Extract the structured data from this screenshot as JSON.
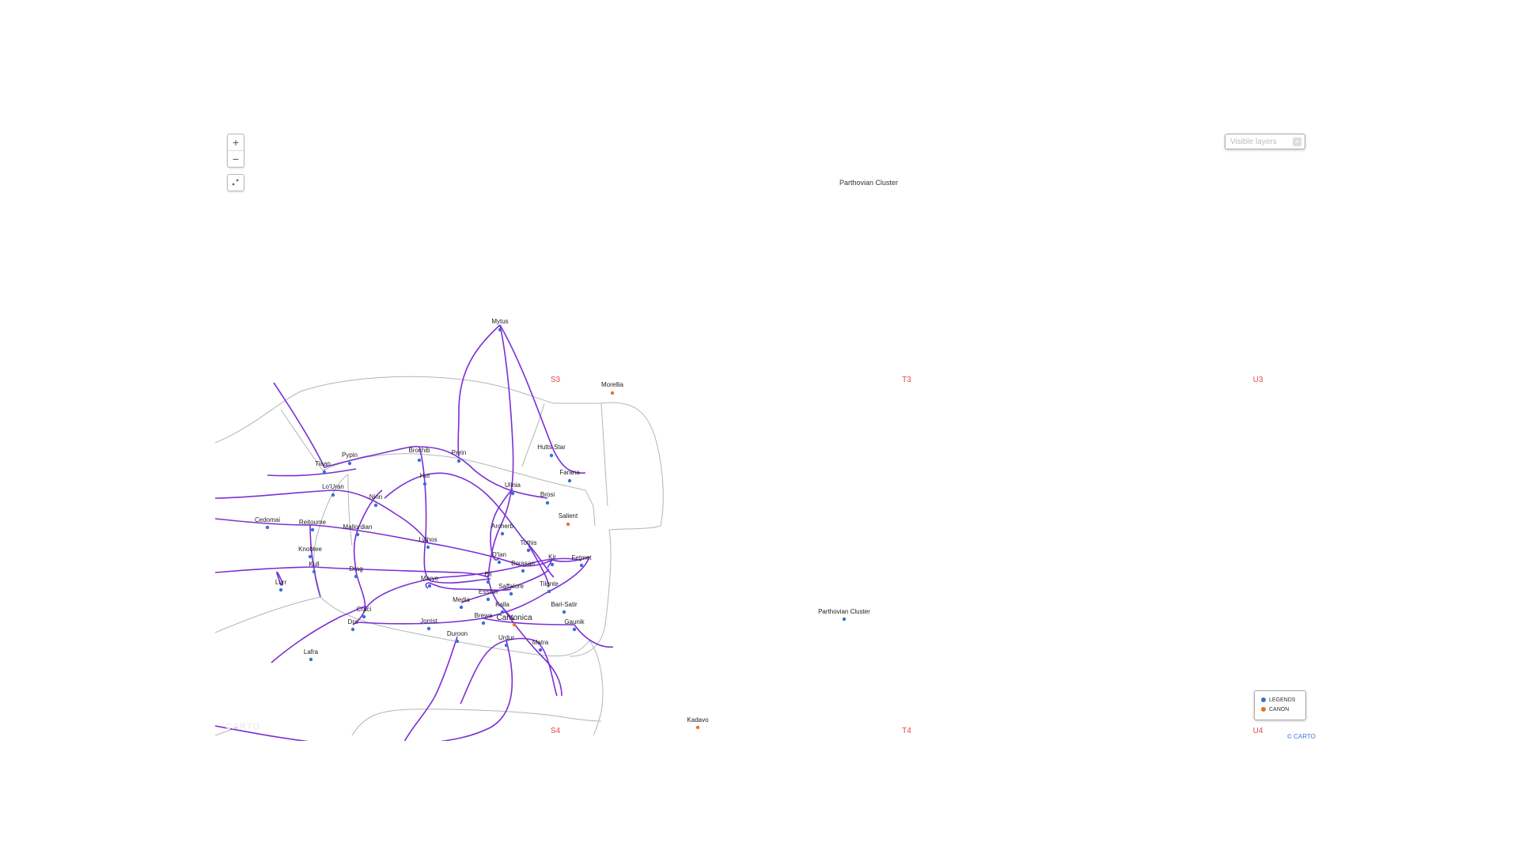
{
  "zoom": {
    "in_label": "+",
    "out_label": "−"
  },
  "layer_select": {
    "placeholder": "Visible layers",
    "clear_label": "×"
  },
  "legend": {
    "items": [
      {
        "label": "LEGENDS",
        "color": "#3b6fd4"
      },
      {
        "label": "CANON",
        "color": "#e8731c"
      }
    ]
  },
  "attribution": "© CARTO",
  "watermark": "CARTO",
  "colors": {
    "route": "#7b2fd6",
    "border": "#b5b5b5",
    "node": "#3b6fd4",
    "canon_node": "#e8731c",
    "grid_label": "#e34a4a"
  },
  "grid_labels": [
    "S3",
    "T3",
    "U3",
    "S4",
    "T4",
    "U4"
  ],
  "region_labels": [
    "Parthovian Cluster"
  ],
  "systems": [
    "Mytus",
    "Morellia",
    "Hutts Star",
    "Brochib",
    "Perin",
    "Pypin",
    "Tiaan",
    "Farana",
    "Hut",
    "Ulinia",
    "Brosi",
    "Lo'Uran",
    "Ninn",
    "Salient",
    "Cedomai",
    "Reitoume",
    "Mallordian",
    "Archerb",
    "Lythos",
    "Tothis",
    "Knobtee",
    "D'lan",
    "Kir",
    "Fetmet",
    "Kull",
    "Borasan",
    "Drag",
    "Eil",
    "Marye",
    "Lurr",
    "Tilgnte",
    "Saffalore",
    "Esslon",
    "Media",
    "Bari-Satir",
    "Kalla",
    "Craci",
    "Cantonica",
    "Brewa",
    "Dra",
    "Jorrist",
    "Gaunik",
    "Duroon",
    "Urdur",
    "Matra",
    "Lafra",
    "Parthovian Cluster",
    "Kadavo"
  ]
}
